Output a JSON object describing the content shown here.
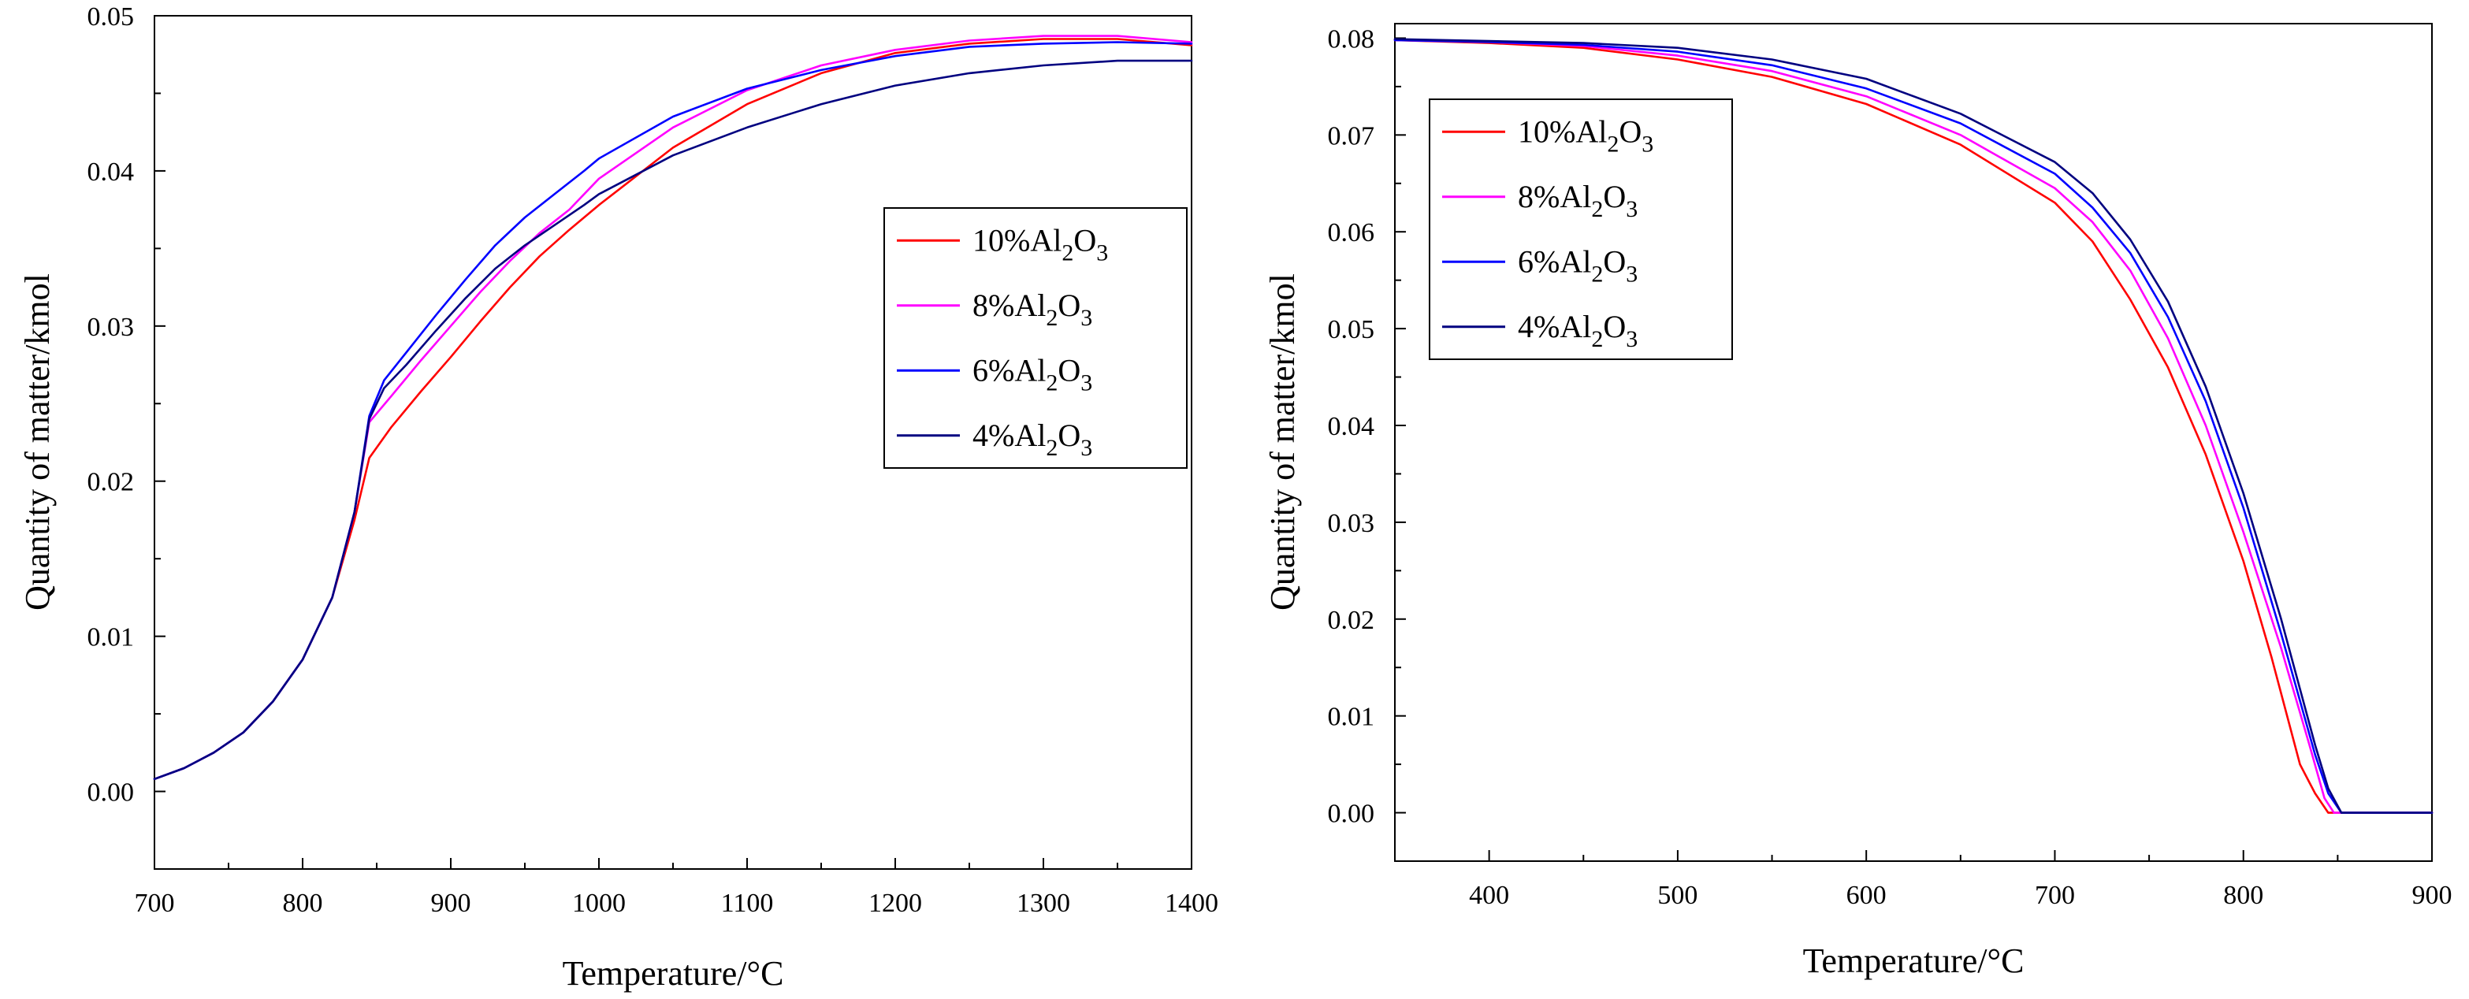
{
  "chart_data": [
    {
      "type": "line",
      "xlabel": "Temperature/°C",
      "ylabel": "Quantity of matter/kmol",
      "xlim": [
        700,
        1400
      ],
      "ylim": [
        -0.005,
        0.05
      ],
      "xticks": [
        700,
        800,
        900,
        1000,
        1100,
        1200,
        1300,
        1400
      ],
      "yticks": [
        0.0,
        0.01,
        0.02,
        0.03,
        0.04,
        0.05
      ],
      "yticklabels": [
        "0.00",
        "0.01",
        "0.02",
        "0.03",
        "0.04",
        "0.05"
      ],
      "legend_position": "center-right",
      "series": [
        {
          "name": "10%Al2O3",
          "label_main": "10%Al",
          "sub1": "2",
          "mid": "O",
          "sub2": "3",
          "color": "#ff0000",
          "x": [
            700,
            720,
            740,
            760,
            780,
            800,
            820,
            835,
            845,
            860,
            880,
            900,
            920,
            940,
            960,
            980,
            1000,
            1050,
            1100,
            1150,
            1200,
            1250,
            1300,
            1350,
            1400
          ],
          "y": [
            0.0008,
            0.0015,
            0.0025,
            0.0038,
            0.0058,
            0.0085,
            0.0125,
            0.0175,
            0.0215,
            0.0235,
            0.0258,
            0.028,
            0.0303,
            0.0325,
            0.0345,
            0.0362,
            0.0378,
            0.0415,
            0.0443,
            0.0463,
            0.0476,
            0.0482,
            0.0485,
            0.0485,
            0.0481
          ]
        },
        {
          "name": "8%Al2O3",
          "label_main": "8%Al",
          "sub1": "2",
          "mid": "O",
          "sub2": "3",
          "color": "#ff00ff",
          "x": [
            700,
            720,
            740,
            760,
            780,
            800,
            820,
            835,
            845,
            860,
            880,
            900,
            920,
            940,
            960,
            980,
            1000,
            1050,
            1100,
            1150,
            1200,
            1250,
            1300,
            1350,
            1400
          ],
          "y": [
            0.0008,
            0.0015,
            0.0025,
            0.0038,
            0.0058,
            0.0085,
            0.0125,
            0.018,
            0.0238,
            0.0255,
            0.0278,
            0.03,
            0.0322,
            0.0342,
            0.036,
            0.0375,
            0.0395,
            0.0428,
            0.0452,
            0.0468,
            0.0478,
            0.0484,
            0.0487,
            0.0487,
            0.0483
          ]
        },
        {
          "name": "6%Al2O3",
          "label_main": "6%Al",
          "sub1": "2",
          "mid": "O",
          "sub2": "3",
          "color": "#0000ff",
          "x": [
            700,
            720,
            740,
            760,
            780,
            800,
            820,
            835,
            845,
            855,
            870,
            890,
            910,
            930,
            950,
            970,
            990,
            1000,
            1050,
            1100,
            1150,
            1200,
            1250,
            1300,
            1350,
            1400
          ],
          "y": [
            0.0008,
            0.0015,
            0.0025,
            0.0038,
            0.0058,
            0.0085,
            0.0125,
            0.018,
            0.0242,
            0.0265,
            0.0283,
            0.0307,
            0.033,
            0.0352,
            0.037,
            0.0385,
            0.04,
            0.0408,
            0.0435,
            0.0453,
            0.0465,
            0.0474,
            0.048,
            0.0482,
            0.0483,
            0.0482
          ]
        },
        {
          "name": "4%Al2O3",
          "label_main": "4%Al",
          "sub1": "2",
          "mid": "O",
          "sub2": "3",
          "color": "#000080",
          "x": [
            700,
            720,
            740,
            760,
            780,
            800,
            820,
            835,
            845,
            855,
            870,
            890,
            910,
            930,
            950,
            970,
            990,
            1000,
            1050,
            1100,
            1150,
            1200,
            1250,
            1300,
            1350,
            1400
          ],
          "y": [
            0.0008,
            0.0015,
            0.0025,
            0.0038,
            0.0058,
            0.0085,
            0.0125,
            0.018,
            0.024,
            0.026,
            0.0275,
            0.0297,
            0.0318,
            0.0337,
            0.0352,
            0.0365,
            0.0378,
            0.0385,
            0.041,
            0.0428,
            0.0443,
            0.0455,
            0.0463,
            0.0468,
            0.0471,
            0.0471
          ]
        }
      ]
    },
    {
      "type": "line",
      "xlabel": "Temperature/°C",
      "ylabel": "Quantity of matter/kmol",
      "xlim": [
        350,
        900
      ],
      "ylim": [
        -0.005,
        0.0815
      ],
      "xticks": [
        400,
        500,
        600,
        700,
        800,
        900
      ],
      "yticks": [
        0.0,
        0.01,
        0.02,
        0.03,
        0.04,
        0.05,
        0.06,
        0.07,
        0.08
      ],
      "yticklabels": [
        "0.00",
        "0.01",
        "0.02",
        "0.03",
        "0.04",
        "0.05",
        "0.06",
        "0.07",
        "0.08"
      ],
      "legend_position": "top-left",
      "series": [
        {
          "name": "10%Al2O3",
          "label_main": "10%Al",
          "sub1": "2",
          "mid": "O",
          "sub2": "3",
          "color": "#ff0000",
          "x": [
            350,
            400,
            450,
            500,
            550,
            600,
            650,
            700,
            720,
            740,
            760,
            780,
            800,
            815,
            830,
            838,
            845,
            900
          ],
          "y": [
            0.0798,
            0.0795,
            0.079,
            0.0778,
            0.076,
            0.0732,
            0.069,
            0.063,
            0.059,
            0.053,
            0.046,
            0.037,
            0.026,
            0.016,
            0.005,
            0.002,
            0.0,
            0.0
          ]
        },
        {
          "name": "8%Al2O3",
          "label_main": "8%Al",
          "sub1": "2",
          "mid": "O",
          "sub2": "3",
          "color": "#ff00ff",
          "x": [
            350,
            400,
            450,
            500,
            550,
            600,
            650,
            700,
            720,
            740,
            760,
            780,
            800,
            820,
            835,
            843,
            848,
            900
          ],
          "y": [
            0.0798,
            0.0796,
            0.0792,
            0.0782,
            0.0766,
            0.074,
            0.07,
            0.0645,
            0.061,
            0.056,
            0.049,
            0.04,
            0.029,
            0.017,
            0.007,
            0.0015,
            0.0,
            0.0
          ]
        },
        {
          "name": "6%Al2O3",
          "label_main": "6%Al",
          "sub1": "2",
          "mid": "O",
          "sub2": "3",
          "color": "#0000ff",
          "x": [
            350,
            400,
            450,
            500,
            550,
            600,
            650,
            700,
            720,
            740,
            760,
            780,
            800,
            820,
            838,
            845,
            852,
            900
          ],
          "y": [
            0.0798,
            0.0796,
            0.0793,
            0.0786,
            0.0772,
            0.0748,
            0.0712,
            0.066,
            0.0625,
            0.0578,
            0.0512,
            0.0425,
            0.0315,
            0.0185,
            0.006,
            0.002,
            0.0,
            0.0
          ]
        },
        {
          "name": "4%Al2O3",
          "label_main": "4%Al",
          "sub1": "2",
          "mid": "O",
          "sub2": "3",
          "color": "#000080",
          "x": [
            350,
            400,
            450,
            500,
            550,
            600,
            650,
            700,
            720,
            740,
            760,
            780,
            800,
            820,
            838,
            845,
            852,
            900
          ],
          "y": [
            0.0799,
            0.0797,
            0.0795,
            0.079,
            0.0778,
            0.0758,
            0.0722,
            0.0672,
            0.064,
            0.0592,
            0.0528,
            0.044,
            0.033,
            0.02,
            0.007,
            0.0025,
            0.0,
            0.0
          ]
        }
      ]
    }
  ]
}
